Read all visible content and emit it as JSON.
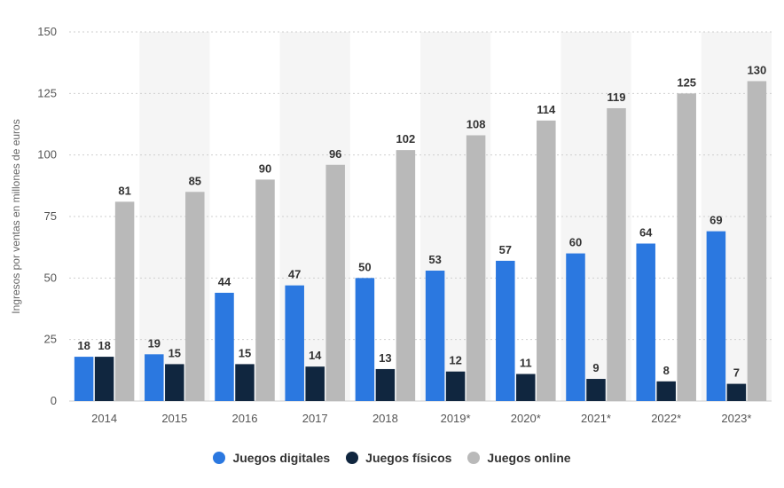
{
  "chart_data": {
    "type": "bar",
    "categories": [
      "2014",
      "2015",
      "2016",
      "2017",
      "2018",
      "2019*",
      "2020*",
      "2021*",
      "2022*",
      "2023*"
    ],
    "series": [
      {
        "name": "Juegos digitales",
        "color": "#2b78e0",
        "values": [
          18,
          19,
          44,
          47,
          50,
          53,
          57,
          60,
          64,
          69
        ]
      },
      {
        "name": "Juegos físicos",
        "color": "#10263f",
        "values": [
          18,
          15,
          15,
          14,
          13,
          12,
          11,
          9,
          8,
          7
        ]
      },
      {
        "name": "Juegos online",
        "color": "#b9b9b9",
        "values": [
          81,
          85,
          90,
          96,
          102,
          108,
          114,
          119,
          125,
          130
        ]
      }
    ],
    "title": "",
    "xlabel": "",
    "ylabel": "Ingresos por ventas en millones de euros",
    "ylim": [
      0,
      150
    ],
    "yticks": [
      0,
      25,
      50,
      75,
      100,
      125,
      150
    ],
    "grid": true,
    "legend_position": "bottom"
  }
}
